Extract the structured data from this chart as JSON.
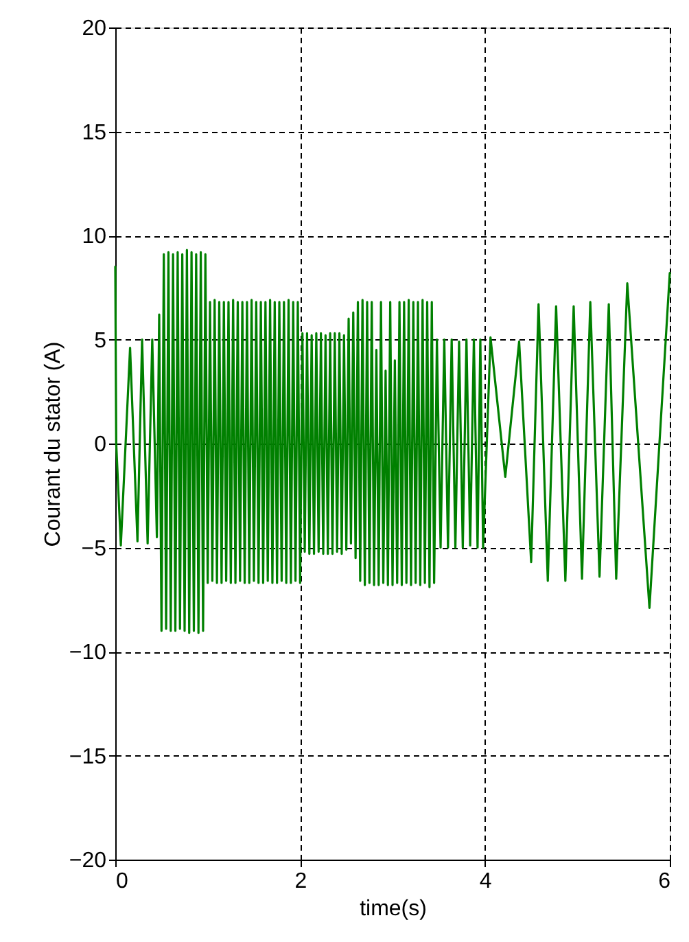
{
  "chart_data": {
    "type": "line",
    "xlabel": "time(s)",
    "ylabel": "Courant du stator (A)",
    "xlim": [
      0,
      6
    ],
    "xticks": [
      0,
      2,
      4,
      6
    ],
    "ylim": [
      -20,
      20
    ],
    "yticks": [
      -20,
      -15,
      -10,
      -5,
      0,
      5,
      10,
      15,
      20
    ],
    "grid": true,
    "line_style": "solid",
    "marker": "none",
    "series": [
      {
        "color": "#008000",
        "x": [
          0,
          0.01,
          0.06,
          0.16,
          0.24,
          0.29,
          0.35,
          0.4,
          0.45,
          0.475,
          0.5,
          0.525,
          0.55,
          0.575,
          0.6,
          0.625,
          0.65,
          0.675,
          0.7,
          0.725,
          0.75,
          0.775,
          0.8,
          0.825,
          0.85,
          0.875,
          0.9,
          0.925,
          0.95,
          0.975,
          1.0,
          1.025,
          1.05,
          1.075,
          1.1,
          1.125,
          1.15,
          1.175,
          1.2,
          1.225,
          1.25,
          1.275,
          1.3,
          1.325,
          1.35,
          1.375,
          1.4,
          1.425,
          1.45,
          1.475,
          1.5,
          1.525,
          1.55,
          1.575,
          1.6,
          1.625,
          1.65,
          1.675,
          1.7,
          1.725,
          1.75,
          1.775,
          1.8,
          1.825,
          1.85,
          1.875,
          1.9,
          1.925,
          1.95,
          1.975,
          2.0,
          2.025,
          2.05,
          2.075,
          2.1,
          2.125,
          2.15,
          2.175,
          2.2,
          2.225,
          2.25,
          2.275,
          2.3,
          2.325,
          2.35,
          2.375,
          2.4,
          2.425,
          2.45,
          2.475,
          2.5,
          2.525,
          2.55,
          2.575,
          2.6,
          2.625,
          2.65,
          2.675,
          2.7,
          2.725,
          2.75,
          2.775,
          2.8,
          2.825,
          2.85,
          2.875,
          2.9,
          2.925,
          2.95,
          2.975,
          3.0,
          3.025,
          3.05,
          3.075,
          3.1,
          3.125,
          3.15,
          3.175,
          3.2,
          3.225,
          3.25,
          3.275,
          3.3,
          3.325,
          3.35,
          3.375,
          3.4,
          3.425,
          3.45,
          3.48,
          3.52,
          3.56,
          3.6,
          3.64,
          3.68,
          3.72,
          3.76,
          3.8,
          3.84,
          3.88,
          3.92,
          3.95,
          3.98,
          4.06,
          4.22,
          4.37,
          4.5,
          4.58,
          4.68,
          4.77,
          4.87,
          4.96,
          5.05,
          5.14,
          5.24,
          5.34,
          5.42,
          5.54,
          5.78,
          6.0
        ],
        "values": [
          8.5,
          0.0,
          -4.9,
          4.6,
          -4.7,
          5.0,
          -4.8,
          5.0,
          -4.5,
          6.2,
          -9.0,
          9.1,
          -8.9,
          9.2,
          -9.0,
          9.1,
          -9.0,
          9.2,
          -8.9,
          9.1,
          -9.0,
          9.3,
          -9.1,
          9.2,
          -9.0,
          9.1,
          -9.1,
          9.2,
          -9.0,
          9.1,
          -6.7,
          6.8,
          -6.6,
          6.9,
          -6.7,
          6.8,
          -6.7,
          6.8,
          -6.6,
          6.8,
          -6.7,
          6.9,
          -6.7,
          6.8,
          -6.6,
          6.8,
          -6.7,
          6.8,
          -6.7,
          6.9,
          -6.6,
          6.8,
          -6.7,
          6.8,
          -6.7,
          6.8,
          -6.6,
          6.9,
          -6.7,
          6.8,
          -6.7,
          6.8,
          -6.6,
          6.8,
          -6.7,
          6.9,
          -6.7,
          6.8,
          -6.6,
          6.8,
          -6.7,
          5.3,
          -5.2,
          5.3,
          -5.3,
          5.2,
          -5.3,
          5.3,
          -5.2,
          5.3,
          -5.3,
          5.2,
          -5.3,
          5.3,
          -5.3,
          5.3,
          -5.2,
          5.3,
          -5.3,
          5.2,
          -5.1,
          6.0,
          -4.8,
          6.3,
          -5.5,
          6.8,
          -6.6,
          6.9,
          -6.8,
          6.8,
          -6.7,
          6.8,
          -6.8,
          4.5,
          -6.8,
          6.8,
          -6.7,
          3.5,
          -6.8,
          6.8,
          -6.8,
          4.0,
          -6.7,
          6.8,
          -6.8,
          6.8,
          -6.7,
          6.9,
          -6.8,
          6.8,
          -6.7,
          6.8,
          -6.8,
          6.9,
          -6.7,
          6.8,
          -6.9,
          6.8,
          -6.7,
          5.0,
          -5.0,
          5.0,
          -5.0,
          5.0,
          -5.0,
          4.9,
          -5.0,
          5.0,
          -4.9,
          5.0,
          -5.0,
          5.0,
          -5.0,
          5.1,
          -1.6,
          4.9,
          -5.7,
          6.7,
          -6.6,
          6.6,
          -6.6,
          6.6,
          -6.5,
          6.8,
          -6.4,
          6.7,
          -6.5,
          7.7,
          -7.9,
          8.2
        ]
      }
    ]
  }
}
